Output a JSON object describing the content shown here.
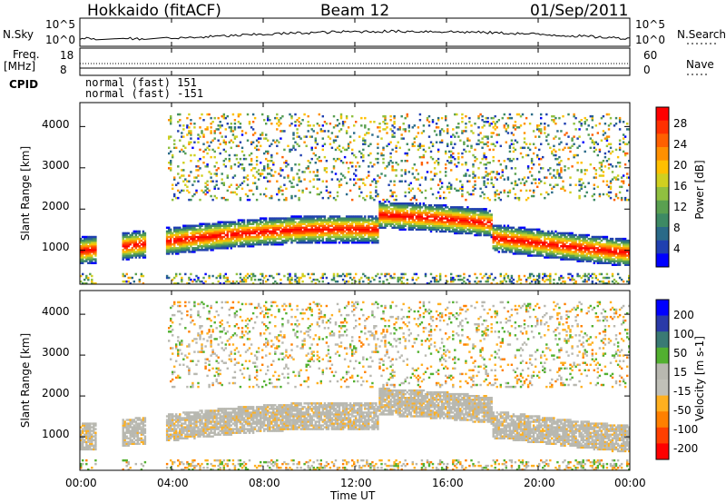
{
  "header": {
    "station": "Hokkaido (fitACF)",
    "beam": "Beam 12",
    "date": "01/Sep/2011"
  },
  "strips": {
    "nsky_label": "N.Sky",
    "nsky_ticks": [
      "10^5",
      "10^0"
    ],
    "nsearch_label": "N.Search",
    "nsearch_ticks": [
      "10^5",
      "10^0"
    ],
    "freq_label": "Freq.",
    "freq_unit": "[MHz]",
    "freq_ticks": [
      "18",
      "8"
    ],
    "nave_label": "Nave",
    "nave_ticks": [
      "60",
      "0"
    ],
    "cpid_label": "CPID",
    "cpid_line1": "normal (fast) 151",
    "cpid_line2": "normal (fast) -151"
  },
  "colors": {
    "power_scale": [
      "#0000ff",
      "#2040b0",
      "#2a6a88",
      "#3d8a64",
      "#5aa050",
      "#90c040",
      "#d0d020",
      "#ffc000",
      "#ff9000",
      "#ff6000",
      "#ff3000",
      "#ff0000"
    ],
    "velocity_scale": [
      "#0000ff",
      "#2a3aa8",
      "#3a7a74",
      "#52b030",
      "#b8b8b0",
      "#c0c0b8",
      "#ffb020",
      "#ff8000",
      "#ff4000",
      "#ff0000"
    ]
  },
  "chart_data": [
    {
      "type": "heatmap",
      "name": "power",
      "xlabel": "Time UT",
      "ylabel": "Slant Range [km]",
      "x_ticks": [
        "00:00",
        "04:00",
        "08:00",
        "12:00",
        "16:00",
        "20:00",
        "00:00"
      ],
      "x_range_hours": [
        0,
        24
      ],
      "y_ticks": [
        "1000",
        "2000",
        "3000",
        "4000"
      ],
      "ylim": [
        180,
        4580
      ],
      "colorbar_label": "Power [dB]",
      "colorbar_ticks": [
        "4",
        "8",
        "12",
        "16",
        "20",
        "24",
        "28"
      ],
      "colorbar_range": [
        0,
        30
      ],
      "data_gaps_hours": [
        [
          0.7,
          1.8
        ],
        [
          2.9,
          3.8
        ]
      ]
    },
    {
      "type": "heatmap",
      "name": "velocity",
      "xlabel": "Time UT",
      "ylabel": "Slant Range [km]",
      "x_ticks": [
        "00:00",
        "04:00",
        "08:00",
        "12:00",
        "16:00",
        "20:00",
        "00:00"
      ],
      "x_range_hours": [
        0,
        24
      ],
      "y_ticks": [
        "1000",
        "2000",
        "3000",
        "4000"
      ],
      "ylim": [
        180,
        4580
      ],
      "colorbar_label": "Velocity [m s-1]",
      "colorbar_ticks": [
        "200",
        "100",
        "50",
        "15",
        "-15",
        "-50",
        "-100",
        "-200"
      ],
      "colorbar_range": [
        -250,
        250
      ],
      "data_gaps_hours": [
        [
          0.7,
          1.8
        ],
        [
          2.9,
          3.8
        ]
      ]
    }
  ],
  "axis": {
    "time_title": "Time UT"
  }
}
